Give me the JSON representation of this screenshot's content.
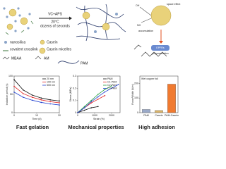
{
  "scheme": {
    "reagents": "VC+APS",
    "temperature": "20°C",
    "time": "dozens of seconds",
    "oh": "OH",
    "space_effect": "space effect",
    "nh": "NH",
    "accumulation": "accumulation",
    "epfrs": "EPFRs",
    "polymerization": "polymerization"
  },
  "legend": [
    "nanosilica",
    "Casein",
    "covalent crosslink",
    "Casein micelles",
    "MBAA",
    "AM",
    "PAM"
  ],
  "captions": [
    "Fast gelation",
    "Mechanical properties",
    "High adhesion"
  ],
  "chart_data": [
    {
      "type": "line",
      "y_label": "Induction period (s)",
      "x_label": "Time (d)",
      "x": [
        0,
        4,
        8,
        12,
        16,
        20
      ],
      "xlim": [
        0,
        20
      ],
      "xticks": [
        0,
        10,
        20
      ],
      "ylim": [
        0,
        100
      ],
      "yticks": [
        0,
        50,
        100
      ],
      "series": [
        {
          "name": "20 nm",
          "color": "#111111",
          "values": [
            90,
            62,
            48,
            40,
            35,
            32
          ]
        },
        {
          "name": "100 nm",
          "color": "#e02020",
          "values": [
            72,
            52,
            42,
            35,
            30,
            27
          ]
        },
        {
          "name": "500 nm",
          "color": "#2040d0",
          "values": [
            56,
            42,
            34,
            28,
            24,
            21
          ]
        }
      ]
    },
    {
      "type": "line",
      "y_label": "Stress (MPa)",
      "x_label": "Strain (%)",
      "x": [
        0,
        400,
        800,
        1200,
        1600,
        2000,
        2400
      ],
      "xlim": [
        0,
        2500
      ],
      "xticks": [
        0,
        1000,
        2000
      ],
      "ylim": [
        0,
        0.3
      ],
      "yticks": [
        0,
        0.1,
        0.2,
        0.3
      ],
      "series": [
        {
          "name": "PAM",
          "color": "#111111",
          "values": [
            0,
            0.02,
            0.04,
            0.05,
            null,
            null,
            null
          ]
        },
        {
          "name": "C1-PAM",
          "color": "#e02020",
          "values": [
            0,
            0.04,
            0.08,
            0.11,
            0.14,
            null,
            null
          ]
        },
        {
          "name": "C2-PAM",
          "color": "#20a040",
          "values": [
            0,
            0.05,
            0.1,
            0.15,
            0.19,
            0.22,
            null
          ]
        },
        {
          "name": "C3-PAM",
          "color": "#2040d0",
          "values": [
            0,
            0.04,
            0.09,
            0.13,
            0.17,
            0.2,
            0.23
          ]
        }
      ]
    },
    {
      "type": "bar",
      "title": "Wet copper foil",
      "y_label": "Force/Width (N/m)",
      "categories": [
        "PAM",
        "Casein",
        "PAM-Casein"
      ],
      "values": [
        22,
        15,
        195
      ],
      "colors": [
        "#9aa9c8",
        "#d9b36a",
        "#f07a30"
      ],
      "ylim": [
        0,
        250
      ],
      "yticks": [
        0,
        100,
        200
      ]
    }
  ]
}
